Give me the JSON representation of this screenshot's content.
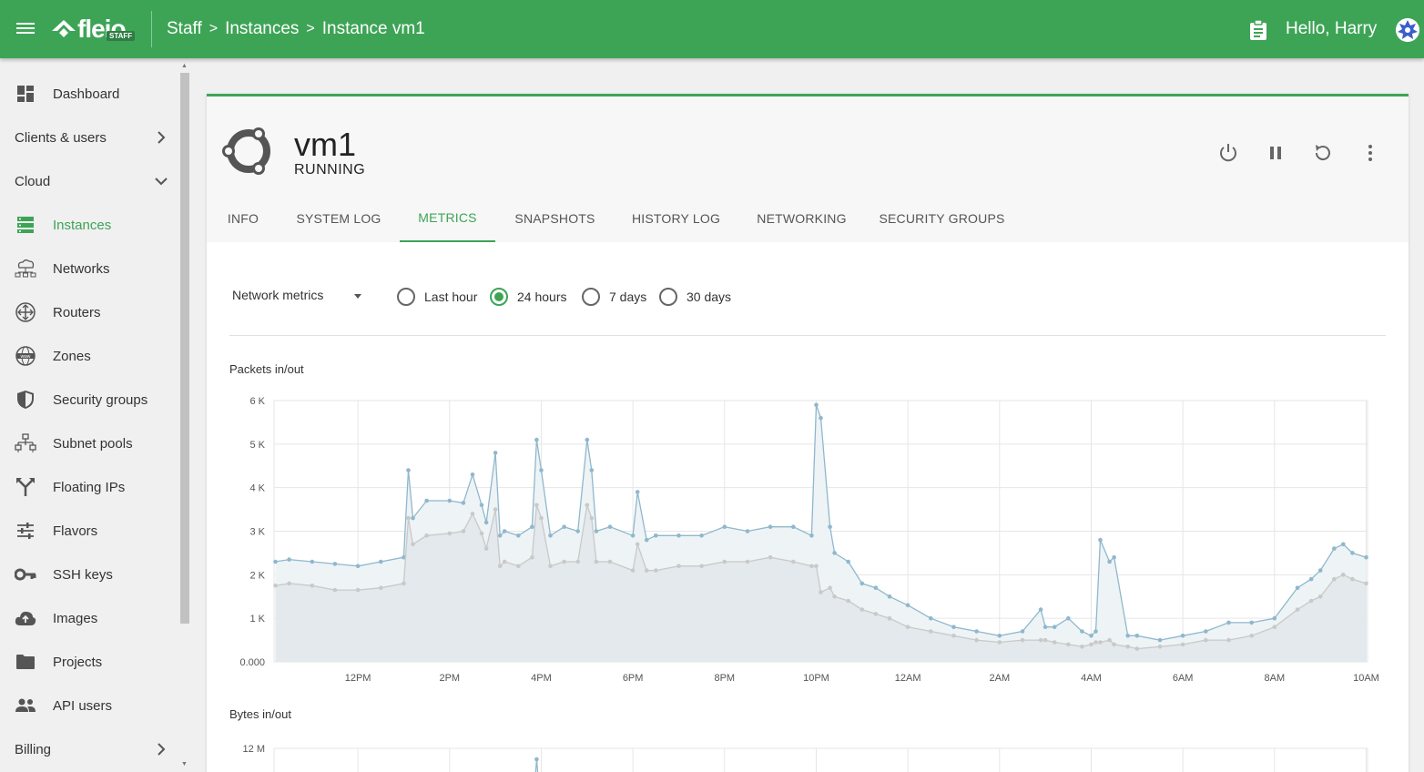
{
  "header": {
    "logo_text": "fleio",
    "logo_badge": "STAFF",
    "breadcrumb": [
      "Staff",
      "Instances",
      "Instance vm1"
    ],
    "breadcrumb_separator": ">",
    "greeting": "Hello, Harry",
    "bar_color": "#3da456"
  },
  "sidebar": {
    "items": [
      {
        "label": "Dashboard",
        "icon": "dashboard-icon"
      },
      {
        "label": "Clients & users",
        "icon": "chevron-right-icon",
        "group": true
      },
      {
        "label": "Cloud",
        "icon": "chevron-down-icon",
        "group": true
      },
      {
        "label": "Instances",
        "icon": "server-icon",
        "active": true
      },
      {
        "label": "Networks",
        "icon": "network-icon"
      },
      {
        "label": "Routers",
        "icon": "router-icon"
      },
      {
        "label": "Zones",
        "icon": "www-globe-icon"
      },
      {
        "label": "Security groups",
        "icon": "shield-icon"
      },
      {
        "label": "Subnet pools",
        "icon": "sitemap-icon"
      },
      {
        "label": "Floating IPs",
        "icon": "fork-icon"
      },
      {
        "label": "Flavors",
        "icon": "sliders-icon"
      },
      {
        "label": "SSH keys",
        "icon": "key-icon"
      },
      {
        "label": "Images",
        "icon": "cloud-upload-icon"
      },
      {
        "label": "Projects",
        "icon": "folder-icon"
      },
      {
        "label": "API users",
        "icon": "people-icon"
      },
      {
        "label": "Billing",
        "icon": "chevron-right-icon",
        "group": true
      }
    ]
  },
  "instance": {
    "name": "vm1",
    "status": "RUNNING",
    "os_icon": "ubuntu-icon"
  },
  "actions": [
    "power-icon",
    "pause-icon",
    "refresh-icon",
    "more-vert-icon"
  ],
  "tabs": [
    {
      "label": "INFO"
    },
    {
      "label": "SYSTEM LOG"
    },
    {
      "label": "METRICS",
      "active": true
    },
    {
      "label": "SNAPSHOTS"
    },
    {
      "label": "HISTORY LOG"
    },
    {
      "label": "NETWORKING"
    },
    {
      "label": "SECURITY GROUPS"
    }
  ],
  "metrics": {
    "selected_metric": "Network metrics",
    "ranges": [
      {
        "label": "Last hour",
        "checked": false
      },
      {
        "label": "24 hours",
        "checked": true
      },
      {
        "label": "7 days",
        "checked": false
      },
      {
        "label": "30 days",
        "checked": false
      }
    ]
  },
  "chart_data": [
    {
      "type": "area",
      "title": "Packets in/out",
      "y_ticks": [
        "0.000",
        "1 K",
        "2 K",
        "3 K",
        "4 K",
        "5 K",
        "6 K"
      ],
      "ylim": [
        0,
        6000
      ],
      "x_ticks": [
        "12PM",
        "2PM",
        "4PM",
        "6PM",
        "8PM",
        "10PM",
        "12AM",
        "2AM",
        "4AM",
        "6AM",
        "8AM",
        "10AM"
      ],
      "x_tick_hours": [
        12,
        14,
        16,
        18,
        20,
        22,
        24,
        26,
        28,
        30,
        32,
        34
      ],
      "x_range_hours": [
        10.17,
        34.03
      ],
      "grid": true,
      "series": [
        {
          "color": "#8fb8cc",
          "x_hours": [
            10.2,
            10.5,
            11.0,
            11.5,
            12.0,
            12.5,
            13.0,
            13.1,
            13.2,
            13.5,
            14.0,
            14.3,
            14.5,
            14.7,
            14.8,
            15.0,
            15.1,
            15.2,
            15.5,
            15.8,
            15.9,
            16.0,
            16.2,
            16.5,
            16.8,
            17.0,
            17.1,
            17.2,
            17.5,
            18.0,
            18.1,
            18.3,
            18.5,
            19.0,
            19.5,
            20.0,
            20.5,
            21.0,
            21.5,
            21.9,
            22.0,
            22.1,
            22.3,
            22.4,
            22.7,
            23.0,
            23.3,
            23.6,
            24.0,
            24.5,
            25.0,
            25.5,
            26.0,
            26.5,
            26.9,
            27.0,
            27.2,
            27.5,
            27.8,
            28.0,
            28.1,
            28.2,
            28.4,
            28.5,
            28.8,
            29.0,
            29.5,
            30.0,
            30.5,
            31.0,
            31.5,
            32.0,
            32.5,
            32.8,
            33.0,
            33.3,
            33.5,
            33.7,
            34.0
          ],
          "values": [
            2300,
            2350,
            2300,
            2250,
            2200,
            2300,
            2400,
            4400,
            3300,
            3700,
            3700,
            3650,
            4300,
            3600,
            3200,
            4800,
            2900,
            3000,
            2900,
            3100,
            5100,
            4400,
            2900,
            3100,
            3000,
            5100,
            4400,
            3000,
            3100,
            2900,
            3900,
            2800,
            2900,
            2900,
            2900,
            3100,
            3000,
            3100,
            3100,
            2900,
            5900,
            5600,
            3100,
            2500,
            2300,
            1800,
            1700,
            1500,
            1300,
            1000,
            800,
            700,
            600,
            700,
            1200,
            800,
            800,
            1000,
            700,
            600,
            700,
            2800,
            2300,
            2400,
            600,
            600,
            500,
            600,
            700,
            900,
            900,
            1000,
            1700,
            1900,
            2100,
            2600,
            2700,
            2500,
            2400
          ]
        },
        {
          "color": "#c9c9c9",
          "x_hours": [
            10.2,
            10.5,
            11.0,
            11.5,
            12.0,
            12.5,
            13.0,
            13.1,
            13.2,
            13.5,
            14.0,
            14.3,
            14.5,
            14.7,
            14.8,
            15.0,
            15.1,
            15.2,
            15.5,
            15.8,
            15.9,
            16.0,
            16.2,
            16.5,
            16.8,
            17.0,
            17.1,
            17.2,
            17.5,
            18.0,
            18.1,
            18.3,
            18.5,
            19.0,
            19.5,
            20.0,
            20.5,
            21.0,
            21.5,
            21.9,
            22.0,
            22.1,
            22.3,
            22.4,
            22.7,
            23.0,
            23.3,
            23.6,
            24.0,
            24.5,
            25.0,
            25.5,
            26.0,
            26.5,
            26.9,
            27.0,
            27.2,
            27.5,
            27.8,
            28.0,
            28.1,
            28.2,
            28.4,
            28.5,
            28.8,
            29.0,
            29.5,
            30.0,
            30.5,
            31.0,
            31.5,
            32.0,
            32.5,
            32.8,
            33.0,
            33.3,
            33.5,
            33.7,
            34.0
          ],
          "values": [
            1750,
            1800,
            1750,
            1650,
            1650,
            1700,
            1800,
            3300,
            2700,
            2900,
            2950,
            3000,
            3400,
            2950,
            2600,
            3500,
            2200,
            2300,
            2200,
            2400,
            3600,
            3300,
            2200,
            2300,
            2300,
            3600,
            3300,
            2300,
            2300,
            2100,
            2700,
            2100,
            2100,
            2200,
            2200,
            2300,
            2300,
            2400,
            2300,
            2200,
            2200,
            1600,
            1700,
            1500,
            1400,
            1200,
            1100,
            1000,
            800,
            700,
            600,
            500,
            450,
            500,
            500,
            500,
            450,
            400,
            350,
            400,
            450,
            450,
            500,
            400,
            350,
            300,
            350,
            400,
            500,
            500,
            600,
            800,
            1200,
            1400,
            1500,
            1900,
            2000,
            1900,
            1800
          ]
        }
      ]
    },
    {
      "type": "area",
      "title": "Bytes in/out",
      "y_ticks": [
        "12 M"
      ],
      "grid": true
    }
  ]
}
